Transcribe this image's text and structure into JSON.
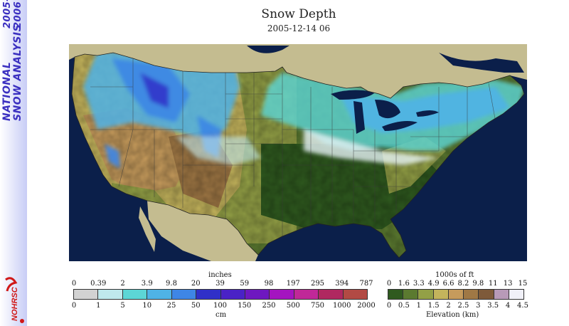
{
  "sidebar": {
    "line1": "NATIONAL",
    "line2": "SNOW ANALYSIS",
    "year1": "2005-",
    "year2": "2006",
    "logo_text": "NOHRSC"
  },
  "header": {
    "title": "Snow Depth",
    "subtitle": "2005-12-14 06"
  },
  "snow_legend": {
    "unit_top": "inches",
    "unit_bottom": "cm",
    "inches": [
      "0",
      "0.39",
      "2",
      "3.9",
      "9.8",
      "20",
      "39",
      "59",
      "98",
      "197",
      "295",
      "394",
      "787"
    ],
    "cm": [
      "0",
      "1",
      "5",
      "10",
      "25",
      "50",
      "100",
      "150",
      "250",
      "500",
      "750",
      "1000",
      "2000"
    ],
    "colors": [
      "#d2d2d2",
      "#bfe8ec",
      "#5cd6d6",
      "#4fb3e6",
      "#3e86e6",
      "#3030c8",
      "#4a22c6",
      "#6e18c0",
      "#a414c0",
      "#c02898",
      "#b02860",
      "#b24a44"
    ]
  },
  "elev_legend": {
    "unit_top": "1000s of ft",
    "unit_bottom": "Elevation (km)",
    "feet": [
      "0",
      "1.6",
      "3.3",
      "4.9",
      "6.6",
      "8.2",
      "9.8",
      "11",
      "13",
      "15"
    ],
    "km": [
      "0",
      "0.5",
      "1",
      "1.5",
      "2",
      "2.5",
      "3",
      "3.5",
      "4",
      "4.5"
    ],
    "colors": [
      "#2f5a1f",
      "#5b7a30",
      "#93a046",
      "#c4b45c",
      "#c69b5c",
      "#a07845",
      "#7e5a3a",
      "#b89ab8",
      "#f0f0f8"
    ]
  },
  "map": {
    "ocean_color": "#0b1f4a",
    "land_outside_color": "#c4bc90"
  }
}
